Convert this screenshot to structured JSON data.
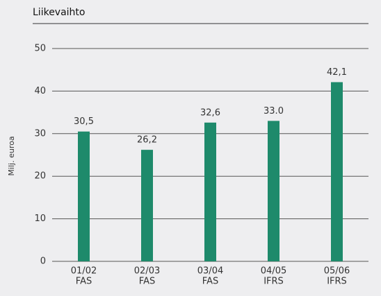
{
  "chart_data": {
    "type": "bar",
    "title": "Liikevaihto",
    "y_label": "Milj. euroa",
    "categories": [
      [
        "01/02",
        "FAS"
      ],
      [
        "02/03",
        "FAS"
      ],
      [
        "03/04",
        "FAS"
      ],
      [
        "04/05",
        "IFRS"
      ],
      [
        "05/06",
        "IFRS"
      ]
    ],
    "values": [
      30.5,
      26.2,
      32.6,
      33.0,
      42.1
    ],
    "value_labels": [
      "30,5",
      "26,2",
      "32,6",
      "33.0",
      "42,1"
    ],
    "color": "#1e8a6b",
    "ylim": [
      0,
      50
    ],
    "yticks": [
      0,
      10,
      20,
      30,
      40,
      50
    ],
    "grid": true
  }
}
